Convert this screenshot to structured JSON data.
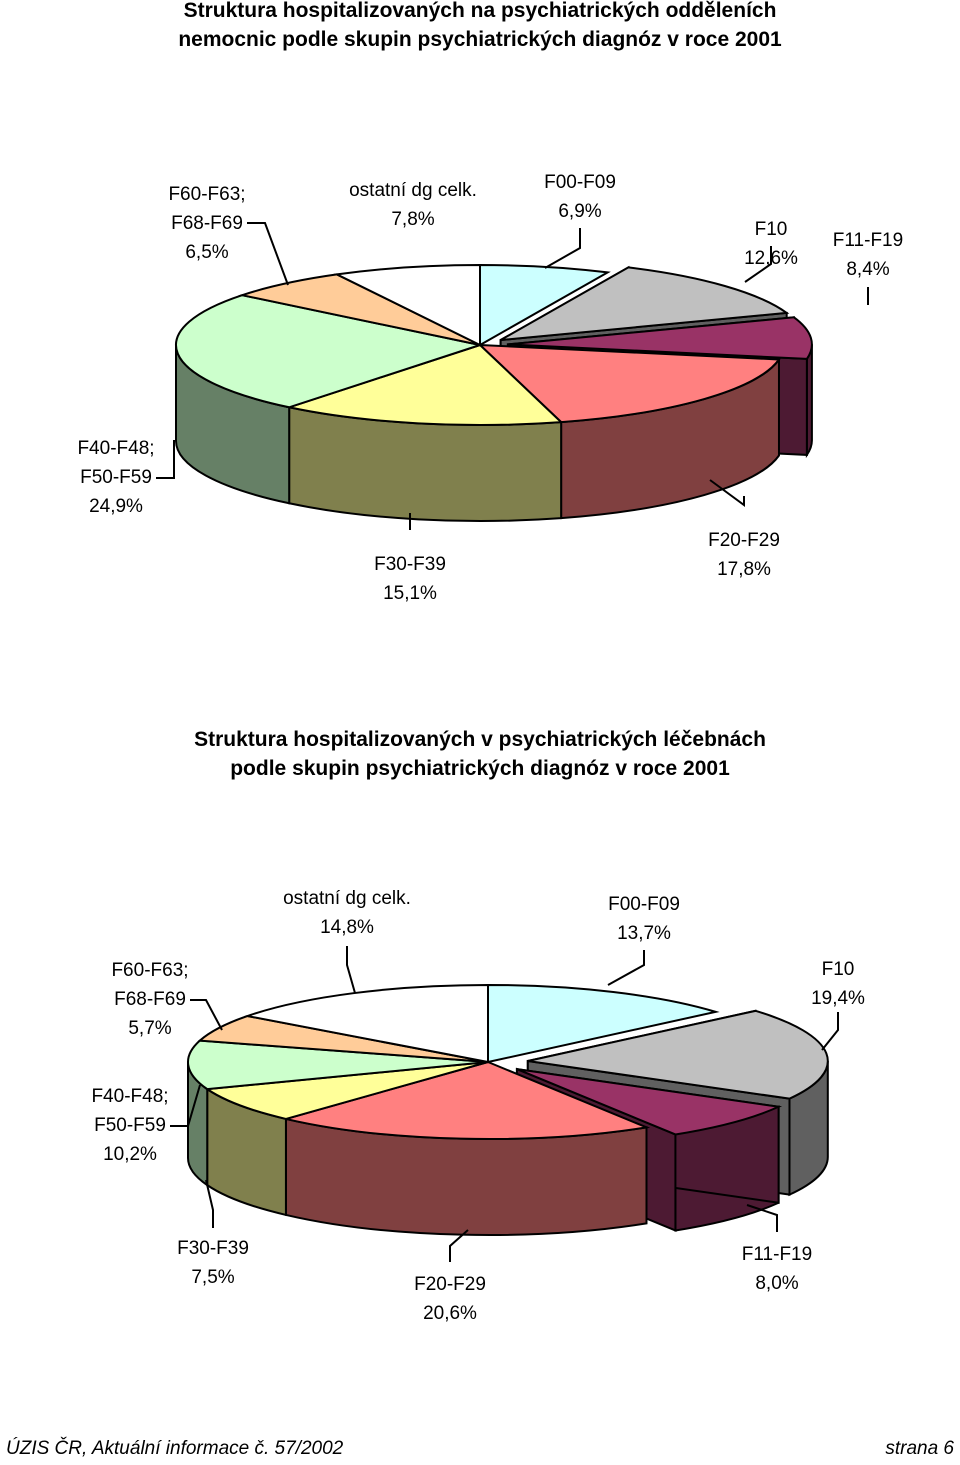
{
  "chart_data": [
    {
      "type": "pie",
      "title": [
        "Struktura hospitalizovaných na psychiatrických odděleních",
        "nemocnic podle skupin psychiatrických diagnóz v roce 2001"
      ],
      "slices": [
        {
          "name": [
            "F00-F09"
          ],
          "value": 6.9,
          "label": "6,9%",
          "color": "#CCFFFF",
          "exploded": false
        },
        {
          "name": [
            "F10"
          ],
          "value": 12.6,
          "label": "12,6%",
          "color": "#C0C0C0",
          "exploded": true
        },
        {
          "name": [
            "F11-F19"
          ],
          "value": 8.4,
          "label": "8,4%",
          "color": "#993366",
          "exploded": true
        },
        {
          "name": [
            "F20-F29"
          ],
          "value": 17.8,
          "label": "17,8%",
          "color": "#FF8080",
          "exploded": false
        },
        {
          "name": [
            "F30-F39"
          ],
          "value": 15.1,
          "label": "15,1%",
          "color": "#FFFF99",
          "exploded": false
        },
        {
          "name": [
            "F40-F48;",
            "F50-F59"
          ],
          "value": 24.9,
          "label": "24,9%",
          "color": "#CCFFCC",
          "exploded": false
        },
        {
          "name": [
            "F60-F63;",
            "F68-F69"
          ],
          "value": 6.5,
          "label": "6,5%",
          "color": "#FFCC99",
          "exploded": false
        },
        {
          "name": [
            "ostatní dg celk."
          ],
          "value": 7.8,
          "label": "7,8%",
          "color": "#FFFFFF",
          "exploded": false
        }
      ]
    },
    {
      "type": "pie",
      "title": [
        "Struktura hospitalizovaných v psychiatrických léčebnách",
        "podle skupin psychiatrických diagnóz v roce 2001"
      ],
      "slices": [
        {
          "name": [
            "F00-F09"
          ],
          "value": 13.7,
          "label": "13,7%",
          "color": "#CCFFFF",
          "exploded": false
        },
        {
          "name": [
            "F10"
          ],
          "value": 19.4,
          "label": "19,4%",
          "color": "#C0C0C0",
          "exploded": true
        },
        {
          "name": [
            "F11-F19"
          ],
          "value": 8.0,
          "label": "8,0%",
          "color": "#993366",
          "exploded": true
        },
        {
          "name": [
            "F20-F29"
          ],
          "value": 20.6,
          "label": "20,6%",
          "color": "#FF8080",
          "exploded": false
        },
        {
          "name": [
            "F30-F39"
          ],
          "value": 7.5,
          "label": "7,5%",
          "color": "#FFFF99",
          "exploded": false
        },
        {
          "name": [
            "F40-F48;",
            "F50-F59"
          ],
          "value": 10.2,
          "label": "10,2%",
          "color": "#CCFFCC",
          "exploded": false
        },
        {
          "name": [
            "F60-F63;",
            "F68-F69"
          ],
          "value": 5.7,
          "label": "5,7%",
          "color": "#FFCC99",
          "exploded": false
        },
        {
          "name": [
            "ostatní dg celk."
          ],
          "value": 14.8,
          "label": "14,8%",
          "color": "#FFFFFF",
          "exploded": false
        }
      ]
    }
  ],
  "footer": {
    "left": "ÚZIS ČR, Aktuální informace č. 57/2002",
    "right": "strana 6"
  }
}
